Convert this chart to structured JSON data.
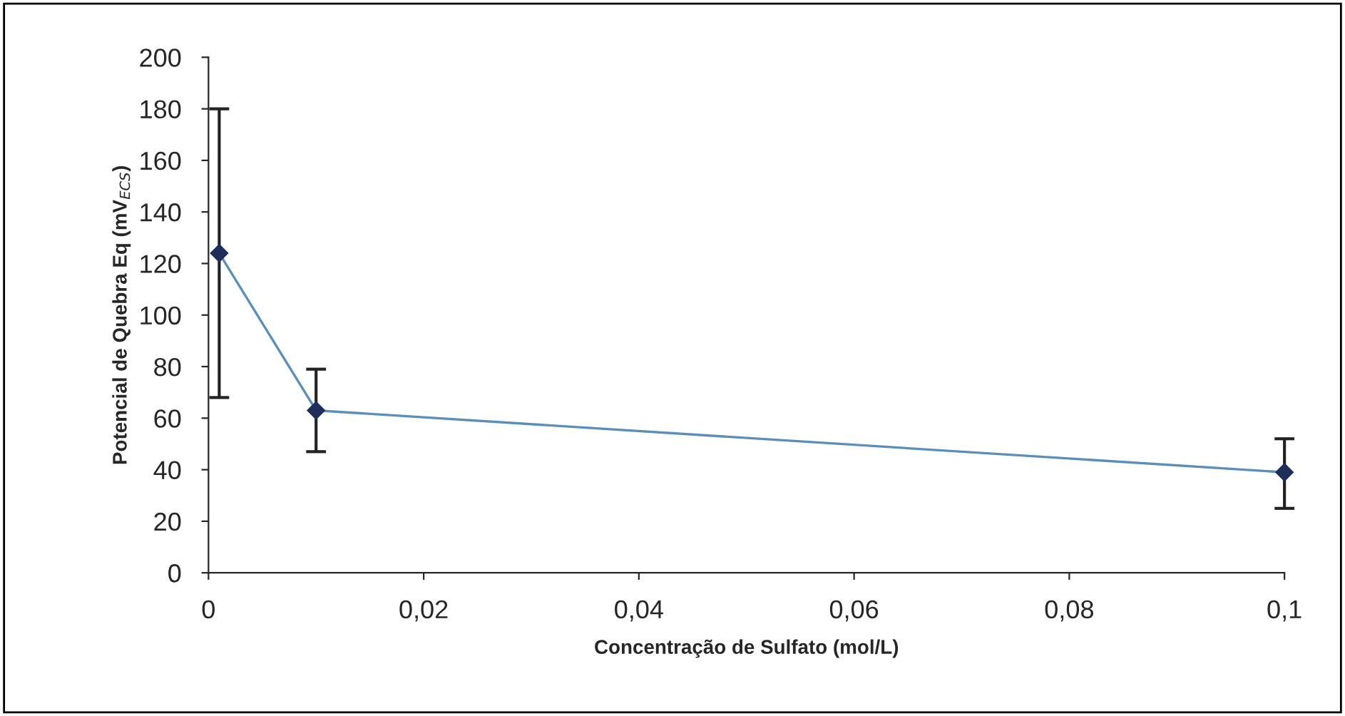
{
  "chart_data": {
    "type": "line",
    "xlabel": "Concentração de Sulfato (mol/L)",
    "ylabel": "Potencial de Quebra Eq (mV$_{ECS}$)",
    "x": [
      0.001,
      0.01,
      0.1
    ],
    "series": [
      {
        "color": "#5b8fb9",
        "values": [
          124,
          63,
          39
        ],
        "errors": [
          [
            68,
            180
          ],
          [
            47,
            79
          ],
          [
            25,
            52
          ]
        ]
      }
    ],
    "xlim": [
      0,
      0.1
    ],
    "ylim": [
      0,
      200
    ],
    "xticks": [
      0,
      {
        "value": 0.02,
        "label": "0,02"
      },
      {
        "value": 0.04,
        "label": "0,04"
      },
      {
        "value": 0.06,
        "label": "0,06"
      },
      {
        "value": 0.08,
        "label": "0,08"
      },
      {
        "value": 0.1,
        "label": "0,1"
      }
    ],
    "yticks": [
      0,
      20,
      40,
      60,
      80,
      100,
      120,
      140,
      160,
      180,
      200
    ],
    "marker": "diamond",
    "grid": false,
    "legend": false
  }
}
